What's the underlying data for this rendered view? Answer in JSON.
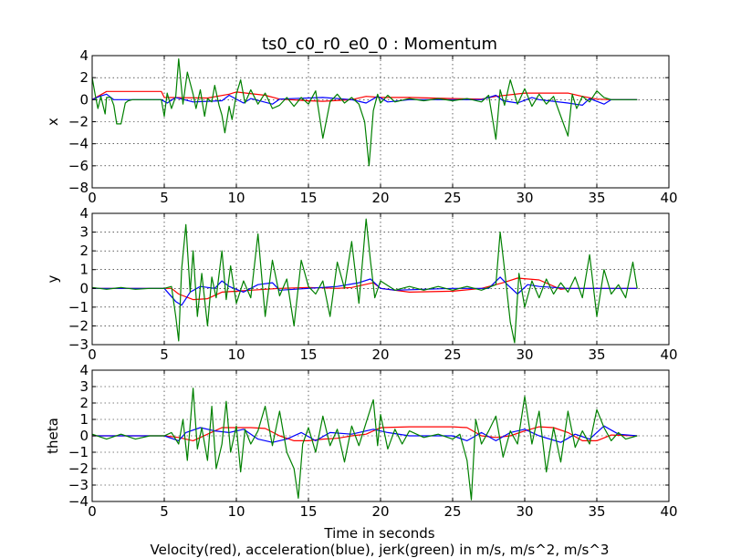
{
  "figure": {
    "title": "ts0_c0_r0_e0_0 : Momentum",
    "xlabel": "Time in seconds",
    "caption": "Velocity(red), acceleration(blue), jerk(green) in m/s, m/s^2, m/s^3"
  },
  "colors": {
    "velocity": "#ff0000",
    "acceleration": "#0000ff",
    "jerk": "#008000"
  },
  "chart_data": [
    {
      "type": "line",
      "ylabel": "x",
      "xlim": [
        0,
        40
      ],
      "ylim": [
        -8,
        4
      ],
      "xticks": [
        0,
        5,
        10,
        15,
        20,
        25,
        30,
        35,
        40
      ],
      "yticks": [
        -8,
        -6,
        -4,
        -2,
        0,
        2,
        4
      ],
      "grid": true,
      "series": [
        {
          "color": "#ff0000",
          "x": [
            0,
            1,
            4.8,
            5,
            8,
            9.5,
            10,
            12,
            13,
            15,
            16,
            18,
            19,
            20,
            22,
            25,
            27,
            28,
            30,
            33,
            34,
            35,
            36,
            37.8
          ],
          "y": [
            0,
            0.75,
            0.75,
            0.2,
            0.15,
            0.5,
            0.7,
            0.4,
            0.05,
            -0.1,
            -0.15,
            0,
            0.3,
            0.2,
            0.2,
            0.1,
            0.05,
            0.3,
            0.6,
            0.6,
            0.3,
            0.05,
            0,
            0
          ]
        },
        {
          "color": "#0000ff",
          "x": [
            0,
            0.5,
            1,
            1.5,
            4.8,
            5.2,
            5.8,
            7,
            9,
            9.5,
            10.5,
            11,
            12.5,
            13,
            16,
            18,
            19,
            19.8,
            20.5,
            22,
            27,
            28,
            28.5,
            29.5,
            30.5,
            31,
            33,
            34,
            34.5,
            35.5,
            36,
            37.8
          ],
          "y": [
            0,
            0.3,
            0.5,
            0,
            0,
            -0.3,
            0.2,
            -0.2,
            -0.1,
            0.4,
            -0.3,
            0.1,
            -0.4,
            0.05,
            0.2,
            0,
            -0.3,
            0.3,
            -0.2,
            0,
            0,
            0.4,
            -0.1,
            -0.3,
            0.2,
            0,
            -0.3,
            -0.5,
            0.1,
            -0.4,
            0,
            0
          ]
        },
        {
          "color": "#008000",
          "x": [
            0,
            0.2,
            0.4,
            0.6,
            0.9,
            1.0,
            1.3,
            1.5,
            1.7,
            2.0,
            2.3,
            2.5,
            2.8,
            3.0,
            4.0,
            4.8,
            5.0,
            5.2,
            5.5,
            5.8,
            6.0,
            6.3,
            6.6,
            7.0,
            7.2,
            7.5,
            7.8,
            8.0,
            8.3,
            8.5,
            8.8,
            9.0,
            9.2,
            9.5,
            9.7,
            10.0,
            10.3,
            10.6,
            11.0,
            11.5,
            12.0,
            12.5,
            13.0,
            13.5,
            14.0,
            14.5,
            15.0,
            15.5,
            16.0,
            16.5,
            17.0,
            17.5,
            18.0,
            18.5,
            18.9,
            19.2,
            19.5,
            19.8,
            20.0,
            20.5,
            21.0,
            22.0,
            23.0,
            24.0,
            25.0,
            26.0,
            27.0,
            27.5,
            28.0,
            28.3,
            28.6,
            29.0,
            29.5,
            30.0,
            30.5,
            31.0,
            31.5,
            32.0,
            32.5,
            33.0,
            33.3,
            33.6,
            34.0,
            34.5,
            35.0,
            35.5,
            36.0,
            36.5,
            37.0,
            37.8
          ],
          "y": [
            2,
            0.5,
            -0.8,
            0.3,
            -1.3,
            0.2,
            0.2,
            -0.5,
            -2.2,
            -2.2,
            -0.3,
            -0.1,
            0,
            0,
            0,
            0,
            -1.5,
            0.6,
            -0.8,
            0.3,
            3.7,
            -0.4,
            2.5,
            0.5,
            -0.8,
            0.9,
            -1.5,
            0.1,
            -0.2,
            1.3,
            -0.5,
            -1.4,
            -3,
            -0.6,
            -1.8,
            0.5,
            1.8,
            -0.3,
            0.9,
            -0.4,
            0.6,
            -0.8,
            -0.5,
            0.2,
            -0.6,
            0.2,
            -0.4,
            0.8,
            -3.5,
            -0.2,
            0.5,
            -0.3,
            0.2,
            -0.4,
            -2,
            -6,
            -1,
            0.5,
            -0.3,
            0.4,
            -0.2,
            0.1,
            -0.1,
            0.1,
            -0.1,
            0.1,
            -0.2,
            0.4,
            -3.6,
            0.9,
            -0.5,
            1.8,
            -0.4,
            1,
            -0.6,
            0.5,
            -0.4,
            0.3,
            -1.5,
            -3.3,
            0.5,
            -0.8,
            0.3,
            -0.2,
            0.8,
            0.2,
            0,
            0,
            0,
            0
          ]
        }
      ]
    },
    {
      "type": "line",
      "ylabel": "y",
      "xlim": [
        0,
        40
      ],
      "ylim": [
        -3,
        4
      ],
      "xticks": [
        0,
        5,
        10,
        15,
        20,
        25,
        30,
        35,
        40
      ],
      "yticks": [
        -3,
        -2,
        -1,
        0,
        1,
        2,
        3,
        4
      ],
      "grid": true,
      "series": [
        {
          "color": "#ff0000",
          "x": [
            0,
            5.5,
            6,
            7,
            8,
            9,
            10,
            11,
            13,
            15,
            17,
            18,
            19.5,
            20,
            22,
            25,
            27,
            28.5,
            29.5,
            31,
            32.5,
            33,
            35,
            37.8
          ],
          "y": [
            0,
            0,
            -0.3,
            -0.6,
            -0.55,
            -0.2,
            -0.15,
            -0.1,
            0,
            0.05,
            0,
            0.05,
            0.3,
            0,
            -0.2,
            -0.15,
            0,
            0.3,
            0.55,
            0.45,
            -0.05,
            0,
            0,
            0
          ]
        },
        {
          "color": "#0000ff",
          "x": [
            0,
            5,
            5.8,
            6.2,
            6.8,
            7.5,
            8.5,
            9,
            9.5,
            10.5,
            11.5,
            12.5,
            13,
            15,
            17,
            18.5,
            19.3,
            20,
            21,
            25,
            27.5,
            28.3,
            28.8,
            29.5,
            30.2,
            31,
            33,
            35,
            37.8
          ],
          "y": [
            0,
            0,
            -0.7,
            -0.9,
            -0.2,
            0.1,
            0,
            0.4,
            0.1,
            -0.2,
            0.2,
            0.3,
            -0.1,
            0,
            0.1,
            0.3,
            0.5,
            0,
            -0.1,
            0,
            0,
            0.6,
            0.2,
            -0.3,
            0.2,
            0.1,
            0,
            0,
            0
          ]
        },
        {
          "color": "#008000",
          "x": [
            0,
            1,
            2,
            3,
            4,
            5,
            5.5,
            5.8,
            6.0,
            6.2,
            6.5,
            6.8,
            7.0,
            7.3,
            7.6,
            8.0,
            8.3,
            8.6,
            9.0,
            9.3,
            9.6,
            10.0,
            10.5,
            11.0,
            11.5,
            12.0,
            12.5,
            13.0,
            13.5,
            14.0,
            14.5,
            15.0,
            15.5,
            16.0,
            16.5,
            17.0,
            17.5,
            18.0,
            18.5,
            19.0,
            19.3,
            19.6,
            20.0,
            21.0,
            22.0,
            23.0,
            24.0,
            25.0,
            26.0,
            27.0,
            28.0,
            28.3,
            28.6,
            29.0,
            29.3,
            29.6,
            30.0,
            30.5,
            31.0,
            31.5,
            32.0,
            32.5,
            33.0,
            33.5,
            34.0,
            34.5,
            35.0,
            35.5,
            36.0,
            36.5,
            37.0,
            37.5,
            37.8
          ],
          "y": [
            0.05,
            -0.05,
            0.05,
            -0.05,
            0,
            0,
            0.1,
            -1.5,
            -2.8,
            1,
            3.4,
            -0.2,
            2,
            -1.5,
            0.8,
            -2,
            0.6,
            -0.5,
            2,
            -0.6,
            1.2,
            -0.8,
            0.4,
            -0.5,
            2.9,
            -1.5,
            1.5,
            -0.4,
            0.5,
            -2,
            1.5,
            0.1,
            -0.3,
            0.4,
            -1.5,
            1.4,
            0,
            2.5,
            -0.8,
            3.7,
            1.5,
            -0.5,
            0.4,
            -0.1,
            0.1,
            -0.1,
            0.1,
            -0.1,
            0.1,
            -0.1,
            0.2,
            3,
            1,
            -1.8,
            -2.9,
            0.8,
            -1,
            0.4,
            -0.5,
            0.5,
            -0.3,
            0.3,
            -0.2,
            0.6,
            -0.5,
            1.8,
            -1.5,
            1,
            -0.3,
            0.2,
            -0.5,
            1.4,
            0
          ]
        }
      ]
    },
    {
      "type": "line",
      "ylabel": "theta",
      "xlim": [
        0,
        40
      ],
      "ylim": [
        -4,
        4
      ],
      "xticks": [
        0,
        5,
        10,
        15,
        20,
        25,
        30,
        35,
        40
      ],
      "yticks": [
        -4,
        -3,
        -2,
        -1,
        0,
        1,
        2,
        3,
        4
      ],
      "grid": true,
      "series": [
        {
          "color": "#ff0000",
          "x": [
            0,
            5,
            6,
            7,
            8,
            9,
            10,
            11,
            12,
            13,
            14,
            15,
            16,
            17,
            18,
            19,
            20,
            22,
            25,
            26,
            27,
            28,
            29,
            30,
            31,
            32,
            33,
            34,
            35,
            36,
            37.8
          ],
          "y": [
            0,
            0,
            -0.1,
            -0.3,
            0.1,
            0.5,
            0.5,
            0.5,
            0.45,
            0,
            -0.3,
            -0.3,
            -0.2,
            -0.15,
            0,
            0.1,
            0.5,
            0.55,
            0.55,
            0.5,
            0,
            -0.1,
            0,
            0.3,
            0.55,
            0.5,
            0.2,
            -0.3,
            -0.3,
            0.05,
            0
          ]
        },
        {
          "color": "#0000ff",
          "x": [
            0,
            5,
            6,
            6.5,
            7.5,
            8.5,
            9.5,
            10.5,
            11.5,
            12.5,
            13.5,
            14.5,
            15.5,
            16.5,
            18,
            19.5,
            20.5,
            22,
            25,
            26,
            27,
            28,
            29,
            30,
            31,
            32.5,
            33.5,
            34.5,
            35.5,
            36.5,
            37.8
          ],
          "y": [
            0,
            0,
            -0.3,
            0.2,
            0.5,
            0.3,
            0.2,
            0.4,
            -0.2,
            -0.4,
            -0.2,
            0.2,
            -0.3,
            0.2,
            0.1,
            0.4,
            0.2,
            0,
            0,
            -0.3,
            0.2,
            -0.3,
            0.2,
            0.4,
            0,
            -0.4,
            0.1,
            -0.2,
            0.6,
            0.1,
            0
          ]
        },
        {
          "color": "#008000",
          "x": [
            0,
            1,
            2,
            3,
            4,
            5,
            5.5,
            6.0,
            6.3,
            6.6,
            7.0,
            7.3,
            7.6,
            8.0,
            8.3,
            8.6,
            9.0,
            9.3,
            9.6,
            10.0,
            10.3,
            10.6,
            11.0,
            11.5,
            12.0,
            12.5,
            13.0,
            13.5,
            14.0,
            14.3,
            14.6,
            15.0,
            15.5,
            16.0,
            16.5,
            17.0,
            17.5,
            18.0,
            18.5,
            19.0,
            19.5,
            19.8,
            20.0,
            20.5,
            21.0,
            21.5,
            22.0,
            23.0,
            24.0,
            25.0,
            25.5,
            26.0,
            26.3,
            26.6,
            27.0,
            27.5,
            28.0,
            28.5,
            29.0,
            29.5,
            30.0,
            30.5,
            31.0,
            31.5,
            32.0,
            32.5,
            33.0,
            33.5,
            34.0,
            34.5,
            35.0,
            35.5,
            36.0,
            36.5,
            37.0,
            37.8
          ],
          "y": [
            0.1,
            -0.2,
            0.1,
            -0.2,
            0,
            0,
            0.2,
            -0.5,
            1,
            -1.5,
            2.9,
            -0.8,
            0.5,
            -1.5,
            1.8,
            -2,
            -0.5,
            2.1,
            -1,
            0.6,
            -2.2,
            0.4,
            -0.5,
            0.3,
            1.8,
            -0.6,
            1.5,
            -1,
            -2,
            -3.8,
            -0.5,
            0.5,
            -1,
            1.2,
            -0.6,
            0.4,
            -1.6,
            0.6,
            -0.6,
            0.8,
            2.2,
            -0.6,
            1.3,
            -0.8,
            0.4,
            -0.5,
            0.3,
            -0.1,
            0.1,
            -0.2,
            0.1,
            -1.5,
            -3.9,
            1,
            -0.5,
            0.3,
            1.2,
            -1.3,
            0.3,
            -0.5,
            2.4,
            -0.5,
            1.5,
            -2.2,
            0.5,
            -1.6,
            1.5,
            -0.7,
            0.3,
            -0.5,
            1.6,
            0.5,
            -0.3,
            0.2,
            -0.2,
            0
          ]
        }
      ]
    }
  ]
}
